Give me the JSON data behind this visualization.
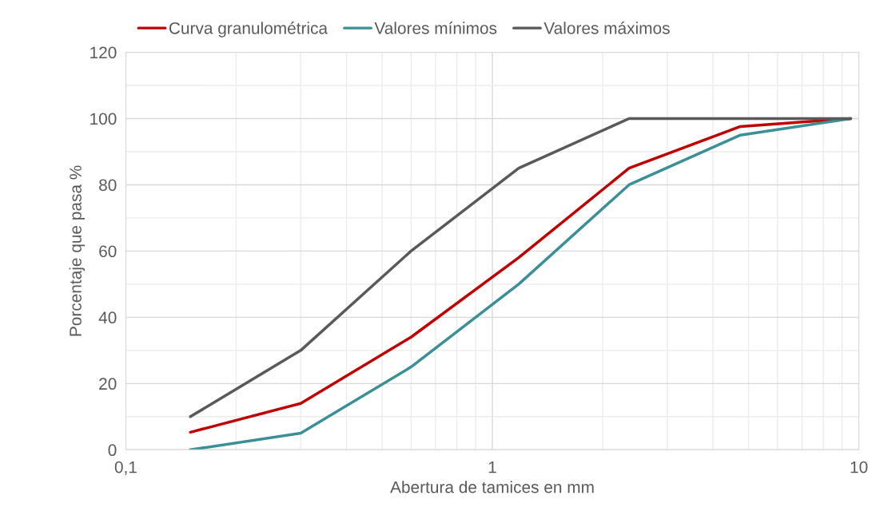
{
  "chart_data": {
    "type": "line",
    "xlabel": "Abertura de tamices en mm",
    "ylabel": "Porcentaje que pasa %",
    "x": [
      0.15,
      0.3,
      0.6,
      1.18,
      2.36,
      4.75,
      9.5
    ],
    "series": [
      {
        "name": "Curva granulométrica",
        "color": "#c00000",
        "values": [
          5.3,
          14,
          34,
          58,
          85,
          97.6,
          100
        ]
      },
      {
        "name": "Valores mínimos",
        "color": "#3a9096",
        "values": [
          0,
          5,
          25,
          50,
          80,
          95,
          100
        ]
      },
      {
        "name": "Valores máximos",
        "color": "#595959",
        "values": [
          10,
          30,
          60,
          85,
          100,
          100,
          100
        ]
      }
    ],
    "log": "x",
    "xlim": [
      0.1,
      10
    ],
    "xticks": [
      {
        "value": 0.1,
        "label": "0,1"
      },
      1,
      10
    ],
    "ylim": [
      0,
      120
    ],
    "yticks": [
      0,
      20,
      40,
      60,
      80,
      100,
      120
    ],
    "grid": true,
    "legend": "top",
    "marker": "none",
    "line_style": "solid"
  }
}
